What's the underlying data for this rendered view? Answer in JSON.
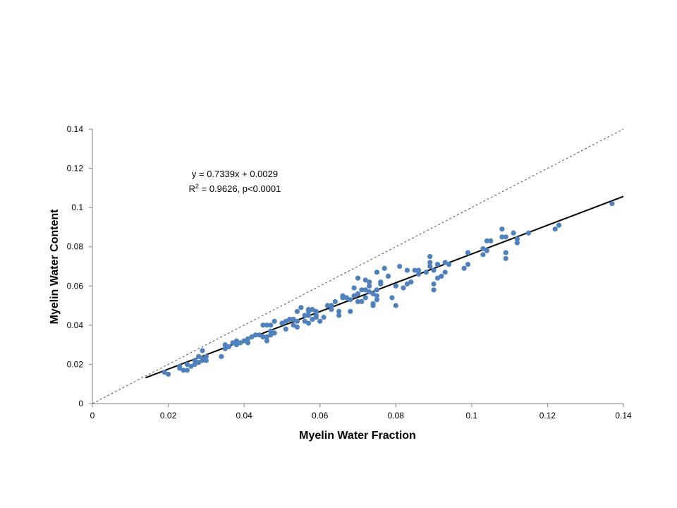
{
  "chart_data": {
    "type": "scatter",
    "title": "",
    "xlabel": "Myelin Water Fraction",
    "ylabel": "Myelin Water Content",
    "xlim": [
      0,
      0.14
    ],
    "ylim": [
      0,
      0.14
    ],
    "xticks": [
      "0",
      "0.02",
      "0.04",
      "0.06",
      "0.08",
      "0.1",
      "0.12",
      "0.14"
    ],
    "yticks": [
      "0",
      "0.02",
      "0.04",
      "0.06",
      "0.08",
      "0.1",
      "0.12",
      "0.14"
    ],
    "grid": false,
    "legend": "none",
    "annotation": {
      "equation": "y = 0.7339x + 0.0029",
      "r2_prefix": "R",
      "r2_sup": "2",
      "r2_rest": " = 0.9626, p<0.0001"
    },
    "trendline": {
      "slope": 0.7339,
      "intercept": 0.0029,
      "x_range": [
        0.014,
        0.14
      ],
      "color": "#000000"
    },
    "identity_line": {
      "x_range": [
        0,
        0.14
      ],
      "style": "dashed",
      "color": "#555555"
    },
    "point_color": "#4f81bd",
    "series": [
      {
        "points": [
          [
            0.019,
            0.016
          ],
          [
            0.02,
            0.015
          ],
          [
            0.023,
            0.018
          ],
          [
            0.023,
            0.019
          ],
          [
            0.024,
            0.017
          ],
          [
            0.025,
            0.017
          ],
          [
            0.025,
            0.02
          ],
          [
            0.026,
            0.019
          ],
          [
            0.027,
            0.02
          ],
          [
            0.027,
            0.022
          ],
          [
            0.028,
            0.021
          ],
          [
            0.028,
            0.024
          ],
          [
            0.029,
            0.023
          ],
          [
            0.029,
            0.027
          ],
          [
            0.029,
            0.022
          ],
          [
            0.03,
            0.022
          ],
          [
            0.03,
            0.024
          ],
          [
            0.034,
            0.024
          ],
          [
            0.035,
            0.03
          ],
          [
            0.035,
            0.028
          ],
          [
            0.036,
            0.029
          ],
          [
            0.037,
            0.031
          ],
          [
            0.038,
            0.03
          ],
          [
            0.038,
            0.032
          ],
          [
            0.039,
            0.031
          ],
          [
            0.04,
            0.032
          ],
          [
            0.041,
            0.031
          ],
          [
            0.041,
            0.033
          ],
          [
            0.042,
            0.034
          ],
          [
            0.043,
            0.035
          ],
          [
            0.044,
            0.035
          ],
          [
            0.045,
            0.04
          ],
          [
            0.045,
            0.034
          ],
          [
            0.046,
            0.032
          ],
          [
            0.046,
            0.034
          ],
          [
            0.046,
            0.04
          ],
          [
            0.047,
            0.035
          ],
          [
            0.047,
            0.037
          ],
          [
            0.047,
            0.04
          ],
          [
            0.048,
            0.036
          ],
          [
            0.048,
            0.042
          ],
          [
            0.05,
            0.041
          ],
          [
            0.051,
            0.042
          ],
          [
            0.051,
            0.038
          ],
          [
            0.052,
            0.043
          ],
          [
            0.053,
            0.043
          ],
          [
            0.053,
            0.04
          ],
          [
            0.054,
            0.039
          ],
          [
            0.054,
            0.042
          ],
          [
            0.054,
            0.047
          ],
          [
            0.055,
            0.049
          ],
          [
            0.056,
            0.042
          ],
          [
            0.056,
            0.045
          ],
          [
            0.057,
            0.041
          ],
          [
            0.057,
            0.045
          ],
          [
            0.057,
            0.048
          ],
          [
            0.057,
            0.047
          ],
          [
            0.058,
            0.043
          ],
          [
            0.058,
            0.048
          ],
          [
            0.059,
            0.047
          ],
          [
            0.059,
            0.045
          ],
          [
            0.059,
            0.044
          ],
          [
            0.06,
            0.042
          ],
          [
            0.061,
            0.044
          ],
          [
            0.062,
            0.05
          ],
          [
            0.063,
            0.05
          ],
          [
            0.063,
            0.048
          ],
          [
            0.064,
            0.052
          ],
          [
            0.065,
            0.047
          ],
          [
            0.065,
            0.045
          ],
          [
            0.066,
            0.055
          ],
          [
            0.066,
            0.054
          ],
          [
            0.067,
            0.054
          ],
          [
            0.068,
            0.053
          ],
          [
            0.068,
            0.047
          ],
          [
            0.069,
            0.055
          ],
          [
            0.069,
            0.059
          ],
          [
            0.07,
            0.056
          ],
          [
            0.07,
            0.064
          ],
          [
            0.07,
            0.052
          ],
          [
            0.071,
            0.052
          ],
          [
            0.071,
            0.058
          ],
          [
            0.072,
            0.063
          ],
          [
            0.072,
            0.054
          ],
          [
            0.072,
            0.058
          ],
          [
            0.073,
            0.057
          ],
          [
            0.073,
            0.06
          ],
          [
            0.073,
            0.062
          ],
          [
            0.074,
            0.051
          ],
          [
            0.074,
            0.05
          ],
          [
            0.074,
            0.056
          ],
          [
            0.075,
            0.053
          ],
          [
            0.075,
            0.055
          ],
          [
            0.075,
            0.058
          ],
          [
            0.075,
            0.067
          ],
          [
            0.076,
            0.062
          ],
          [
            0.076,
            0.061
          ],
          [
            0.077,
            0.069
          ],
          [
            0.078,
            0.065
          ],
          [
            0.079,
            0.054
          ],
          [
            0.08,
            0.05
          ],
          [
            0.08,
            0.06
          ],
          [
            0.081,
            0.07
          ],
          [
            0.082,
            0.059
          ],
          [
            0.083,
            0.061
          ],
          [
            0.083,
            0.068
          ],
          [
            0.084,
            0.062
          ],
          [
            0.085,
            0.068
          ],
          [
            0.086,
            0.066
          ],
          [
            0.086,
            0.068
          ],
          [
            0.088,
            0.067
          ],
          [
            0.089,
            0.072
          ],
          [
            0.089,
            0.075
          ],
          [
            0.089,
            0.07
          ],
          [
            0.09,
            0.068
          ],
          [
            0.09,
            0.061
          ],
          [
            0.09,
            0.058
          ],
          [
            0.091,
            0.064
          ],
          [
            0.091,
            0.071
          ],
          [
            0.092,
            0.065
          ],
          [
            0.093,
            0.067
          ],
          [
            0.093,
            0.072
          ],
          [
            0.094,
            0.071
          ],
          [
            0.098,
            0.069
          ],
          [
            0.099,
            0.077
          ],
          [
            0.099,
            0.071
          ],
          [
            0.103,
            0.079
          ],
          [
            0.103,
            0.076
          ],
          [
            0.104,
            0.078
          ],
          [
            0.104,
            0.083
          ],
          [
            0.105,
            0.083
          ],
          [
            0.108,
            0.085
          ],
          [
            0.108,
            0.089
          ],
          [
            0.109,
            0.074
          ],
          [
            0.109,
            0.077
          ],
          [
            0.109,
            0.085
          ],
          [
            0.111,
            0.087
          ],
          [
            0.112,
            0.082
          ],
          [
            0.112,
            0.084
          ],
          [
            0.115,
            0.087
          ],
          [
            0.122,
            0.089
          ],
          [
            0.123,
            0.091
          ],
          [
            0.137,
            0.102
          ]
        ]
      }
    ]
  }
}
